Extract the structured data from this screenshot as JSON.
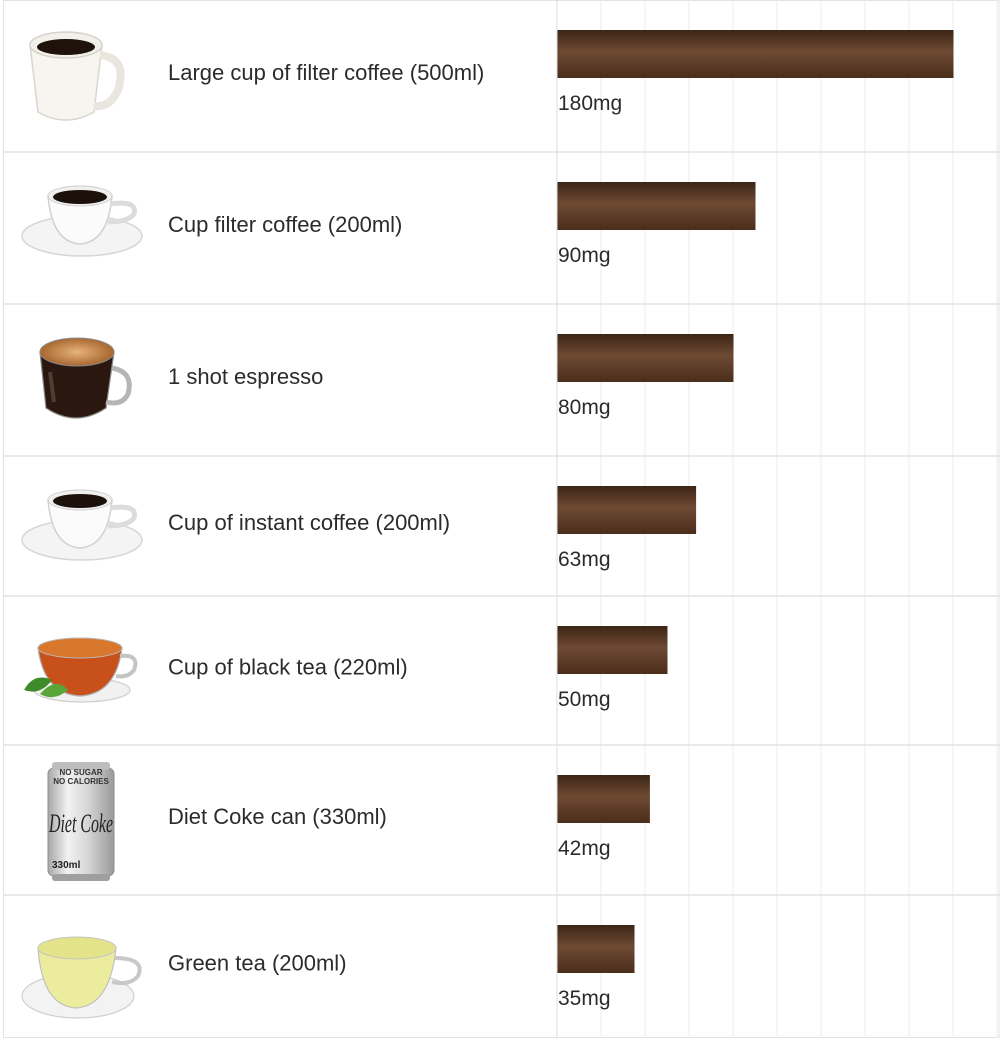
{
  "chart_data": {
    "type": "bar",
    "orientation": "horizontal",
    "title": "",
    "xlabel": "",
    "ylabel": "",
    "xlim": [
      0,
      200
    ],
    "grid": true,
    "bar_color": "#5b3a24",
    "categories": [
      "Large cup of filter coffee (500ml)",
      "Cup filter coffee (200ml)",
      "1 shot espresso",
      "Cup of instant coffee (200ml)",
      "Cup of black tea (220ml)",
      "Diet Coke can (330ml)",
      "Green tea (200ml)"
    ],
    "values": [
      180,
      90,
      80,
      63,
      50,
      42,
      35
    ],
    "value_labels": [
      "180mg",
      "90mg",
      "80mg",
      "63mg",
      "50mg",
      "42mg",
      "35mg"
    ],
    "icons": [
      "large-mug-icon",
      "coffee-cup-icon",
      "espresso-glass-icon",
      "instant-coffee-cup-icon",
      "black-tea-cup-icon",
      "diet-coke-can-icon",
      "green-tea-cup-icon"
    ],
    "can_text": {
      "line1": "NO SUGAR",
      "line2": "NO CALORIES",
      "brand": "Diet Coke",
      "volume": "330ml"
    }
  }
}
